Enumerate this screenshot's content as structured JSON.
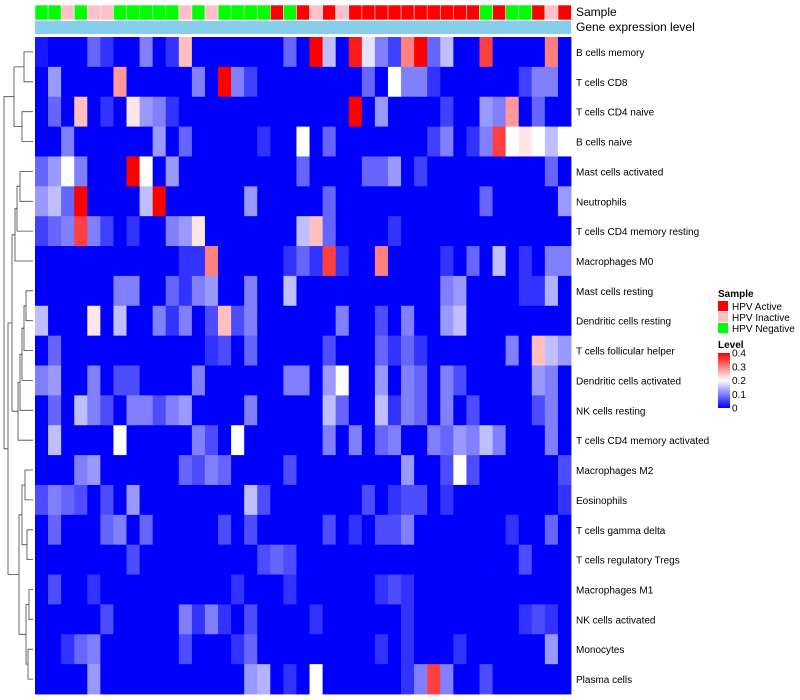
{
  "chart_data": {
    "type": "heatmap",
    "annotation_tracks": [
      {
        "name": "Sample"
      },
      {
        "name": "Gene expression level"
      }
    ],
    "rows": [
      "B cells memory",
      "T cells CD8",
      "T cells CD4 naive",
      "B cells naive",
      "Mast cells activated",
      "Neutrophils",
      "T cells CD4 memory resting",
      "Macrophages M0",
      "Mast cells resting",
      "Dendritic cells resting",
      "T cells follicular helper",
      "Dendritic cells activated",
      "NK cells resting",
      "T cells CD4 memory activated",
      "Macrophages M2",
      "Eosinophils",
      "T cells gamma delta",
      "T cells regulatory  Tregs",
      "Macrophages M1",
      "NK cells activated",
      "Monocytes",
      "Plasma cells"
    ],
    "column_groups": [
      "G",
      "G",
      "P",
      "G",
      "P",
      "P",
      "G",
      "G",
      "G",
      "G",
      "G",
      "P",
      "G",
      "P",
      "G",
      "G",
      "G",
      "G",
      "R",
      "G",
      "R",
      "P",
      "R",
      "P",
      "R",
      "R",
      "R",
      "R",
      "R",
      "R",
      "R",
      "R",
      "R",
      "R",
      "G",
      "R",
      "G",
      "G",
      "R",
      "P",
      "R"
    ],
    "values": [
      [
        0.02,
        0.0,
        0.0,
        0.0,
        0.08,
        0.04,
        0.0,
        0.0,
        0.1,
        0.0,
        0.04,
        0.25,
        0.0,
        0.0,
        0.0,
        0.0,
        0.0,
        0.0,
        0.0,
        0.08,
        0.0,
        0.4,
        0.15,
        0.0,
        0.38,
        0.18,
        0.1,
        0.05,
        0.3,
        0.4,
        0.08,
        0.15,
        0.0,
        0.0,
        0.35,
        0.0,
        0.0,
        0.0,
        0.0,
        0.3,
        0.0
      ],
      [
        0.0,
        0.12,
        0.0,
        0.0,
        0.0,
        0.0,
        0.28,
        0.0,
        0.0,
        0.0,
        0.0,
        0.0,
        0.1,
        0.0,
        0.4,
        0.1,
        0.05,
        0.0,
        0.0,
        0.0,
        0.0,
        0.0,
        0.0,
        0.0,
        0.0,
        0.08,
        0.0,
        0.2,
        0.1,
        0.1,
        0.04,
        0.0,
        0.0,
        0.0,
        0.0,
        0.0,
        0.0,
        0.05,
        0.1,
        0.1,
        0.0
      ],
      [
        0.0,
        0.08,
        0.0,
        0.25,
        0.0,
        0.04,
        0.0,
        0.22,
        0.12,
        0.1,
        0.04,
        0.0,
        0.0,
        0.0,
        0.0,
        0.0,
        0.0,
        0.0,
        0.0,
        0.0,
        0.0,
        0.0,
        0.0,
        0.0,
        0.4,
        0.0,
        0.12,
        0.0,
        0.0,
        0.0,
        0.0,
        0.05,
        0.0,
        0.0,
        0.12,
        0.1,
        0.28,
        0.0,
        0.08,
        0.0,
        0.0
      ],
      [
        0.0,
        0.0,
        0.1,
        0.0,
        0.0,
        0.0,
        0.0,
        0.0,
        0.0,
        0.12,
        0.0,
        0.08,
        0.0,
        0.0,
        0.0,
        0.0,
        0.0,
        0.04,
        0.0,
        0.0,
        0.2,
        0.0,
        0.08,
        0.0,
        0.0,
        0.0,
        0.0,
        0.0,
        0.0,
        0.0,
        0.05,
        0.1,
        0.0,
        0.04,
        0.1,
        0.35,
        0.2,
        0.22,
        0.2,
        0.15,
        0.2
      ],
      [
        0.08,
        0.12,
        0.2,
        0.1,
        0.0,
        0.0,
        0.0,
        0.4,
        0.2,
        0.0,
        0.12,
        0.0,
        0.0,
        0.0,
        0.0,
        0.0,
        0.0,
        0.0,
        0.0,
        0.0,
        0.08,
        0.0,
        0.0,
        0.0,
        0.0,
        0.08,
        0.08,
        0.12,
        0.0,
        0.05,
        0.0,
        0.0,
        0.0,
        0.0,
        0.0,
        0.0,
        0.0,
        0.0,
        0.0,
        0.08,
        0.0
      ],
      [
        0.12,
        0.15,
        0.08,
        0.4,
        0.0,
        0.0,
        0.0,
        0.0,
        0.15,
        0.4,
        0.0,
        0.0,
        0.0,
        0.0,
        0.0,
        0.0,
        0.12,
        0.0,
        0.0,
        0.0,
        0.0,
        0.0,
        0.08,
        0.0,
        0.0,
        0.0,
        0.0,
        0.0,
        0.0,
        0.0,
        0.0,
        0.0,
        0.0,
        0.0,
        0.08,
        0.0,
        0.0,
        0.0,
        0.0,
        0.0,
        0.12
      ],
      [
        0.05,
        0.08,
        0.1,
        0.35,
        0.1,
        0.05,
        0.0,
        0.04,
        0.0,
        0.0,
        0.1,
        0.12,
        0.22,
        0.0,
        0.0,
        0.0,
        0.0,
        0.0,
        0.0,
        0.0,
        0.15,
        0.25,
        0.08,
        0.0,
        0.0,
        0.0,
        0.0,
        0.04,
        0.0,
        0.0,
        0.0,
        0.0,
        0.0,
        0.0,
        0.0,
        0.0,
        0.0,
        0.0,
        0.0,
        0.0,
        0.0
      ],
      [
        0.0,
        0.0,
        0.0,
        0.0,
        0.0,
        0.0,
        0.0,
        0.0,
        0.0,
        0.0,
        0.0,
        0.04,
        0.04,
        0.3,
        0.0,
        0.0,
        0.0,
        0.0,
        0.0,
        0.04,
        0.08,
        0.04,
        0.35,
        0.04,
        0.0,
        0.0,
        0.3,
        0.0,
        0.0,
        0.0,
        0.0,
        0.04,
        0.0,
        0.08,
        0.0,
        0.15,
        0.0,
        0.04,
        0.0,
        0.1,
        0.1
      ],
      [
        0.0,
        0.0,
        0.0,
        0.0,
        0.0,
        0.0,
        0.1,
        0.1,
        0.0,
        0.0,
        0.08,
        0.04,
        0.1,
        0.12,
        0.0,
        0.0,
        0.1,
        0.0,
        0.0,
        0.15,
        0.0,
        0.0,
        0.0,
        0.0,
        0.0,
        0.0,
        0.0,
        0.0,
        0.0,
        0.0,
        0.0,
        0.1,
        0.12,
        0.0,
        0.0,
        0.0,
        0.0,
        0.04,
        0.04,
        0.14,
        0.0
      ],
      [
        0.15,
        0.0,
        0.0,
        0.0,
        0.22,
        0.0,
        0.15,
        0.0,
        0.0,
        0.1,
        0.04,
        0.1,
        0.0,
        0.06,
        0.25,
        0.06,
        0.1,
        0.0,
        0.0,
        0.0,
        0.0,
        0.0,
        0.0,
        0.1,
        0.0,
        0.0,
        0.06,
        0.0,
        0.1,
        0.0,
        0.0,
        0.12,
        0.15,
        0.0,
        0.0,
        0.0,
        0.0,
        0.0,
        0.0,
        0.0,
        0.0
      ],
      [
        0.0,
        0.08,
        0.0,
        0.0,
        0.0,
        0.0,
        0.0,
        0.0,
        0.0,
        0.0,
        0.0,
        0.0,
        0.0,
        0.04,
        0.06,
        0.0,
        0.08,
        0.0,
        0.0,
        0.0,
        0.0,
        0.0,
        0.06,
        0.0,
        0.0,
        0.0,
        0.08,
        0.04,
        0.08,
        0.04,
        0.0,
        0.0,
        0.0,
        0.0,
        0.0,
        0.0,
        0.1,
        0.0,
        0.25,
        0.15,
        0.12
      ],
      [
        0.1,
        0.12,
        0.0,
        0.0,
        0.1,
        0.0,
        0.06,
        0.06,
        0.0,
        0.0,
        0.0,
        0.0,
        0.1,
        0.0,
        0.0,
        0.0,
        0.0,
        0.0,
        0.0,
        0.1,
        0.1,
        0.0,
        0.12,
        0.2,
        0.0,
        0.0,
        0.12,
        0.0,
        0.1,
        0.08,
        0.0,
        0.1,
        0.06,
        0.0,
        0.0,
        0.0,
        0.0,
        0.0,
        0.12,
        0.1,
        0.0
      ],
      [
        0.0,
        0.08,
        0.0,
        0.15,
        0.1,
        0.06,
        0.0,
        0.1,
        0.1,
        0.06,
        0.1,
        0.12,
        0.0,
        0.0,
        0.0,
        0.0,
        0.1,
        0.0,
        0.0,
        0.0,
        0.0,
        0.0,
        0.15,
        0.08,
        0.0,
        0.0,
        0.15,
        0.04,
        0.1,
        0.08,
        0.0,
        0.1,
        0.0,
        0.06,
        0.0,
        0.0,
        0.0,
        0.0,
        0.06,
        0.1,
        0.0
      ],
      [
        0.0,
        0.15,
        0.0,
        0.0,
        0.0,
        0.0,
        0.2,
        0.0,
        0.0,
        0.0,
        0.0,
        0.0,
        0.1,
        0.06,
        0.0,
        0.2,
        0.0,
        0.0,
        0.0,
        0.0,
        0.0,
        0.0,
        0.1,
        0.0,
        0.1,
        0.0,
        0.08,
        0.1,
        0.0,
        0.0,
        0.1,
        0.08,
        0.12,
        0.1,
        0.15,
        0.1,
        0.0,
        0.0,
        0.0,
        0.1,
        0.0
      ],
      [
        0.0,
        0.0,
        0.0,
        0.1,
        0.12,
        0.0,
        0.0,
        0.0,
        0.0,
        0.0,
        0.0,
        0.08,
        0.06,
        0.1,
        0.08,
        0.0,
        0.0,
        0.0,
        0.0,
        0.06,
        0.0,
        0.0,
        0.0,
        0.0,
        0.0,
        0.0,
        0.0,
        0.0,
        0.12,
        0.0,
        0.0,
        0.06,
        0.2,
        0.06,
        0.0,
        0.0,
        0.0,
        0.0,
        0.0,
        0.0,
        0.06
      ],
      [
        0.06,
        0.1,
        0.08,
        0.06,
        0.0,
        0.06,
        0.0,
        0.12,
        0.0,
        0.0,
        0.0,
        0.0,
        0.0,
        0.0,
        0.0,
        0.0,
        0.15,
        0.06,
        0.0,
        0.0,
        0.0,
        0.0,
        0.0,
        0.0,
        0.0,
        0.06,
        0.0,
        0.04,
        0.06,
        0.06,
        0.0,
        0.04,
        0.0,
        0.0,
        0.0,
        0.0,
        0.0,
        0.0,
        0.0,
        0.0,
        0.04
      ],
      [
        0.0,
        0.08,
        0.0,
        0.0,
        0.0,
        0.08,
        0.1,
        0.0,
        0.08,
        0.0,
        0.0,
        0.0,
        0.0,
        0.0,
        0.06,
        0.0,
        0.06,
        0.0,
        0.0,
        0.0,
        0.0,
        0.0,
        0.06,
        0.0,
        0.04,
        0.0,
        0.06,
        0.06,
        0.1,
        0.0,
        0.0,
        0.0,
        0.0,
        0.0,
        0.0,
        0.0,
        0.04,
        0.0,
        0.0,
        0.08,
        0.0
      ],
      [
        0.0,
        0.0,
        0.0,
        0.0,
        0.0,
        0.0,
        0.0,
        0.06,
        0.0,
        0.0,
        0.0,
        0.0,
        0.0,
        0.0,
        0.0,
        0.0,
        0.0,
        0.06,
        0.08,
        0.06,
        0.0,
        0.0,
        0.0,
        0.0,
        0.0,
        0.0,
        0.0,
        0.0,
        0.0,
        0.0,
        0.0,
        0.0,
        0.0,
        0.0,
        0.0,
        0.0,
        0.0,
        0.06,
        0.0,
        0.0,
        0.0
      ],
      [
        0.0,
        0.06,
        0.0,
        0.0,
        0.04,
        0.0,
        0.0,
        0.0,
        0.0,
        0.0,
        0.0,
        0.0,
        0.0,
        0.0,
        0.0,
        0.04,
        0.0,
        0.0,
        0.0,
        0.04,
        0.0,
        0.0,
        0.0,
        0.0,
        0.0,
        0.0,
        0.04,
        0.06,
        0.04,
        0.0,
        0.0,
        0.0,
        0.0,
        0.0,
        0.0,
        0.0,
        0.0,
        0.0,
        0.0,
        0.0,
        0.0
      ],
      [
        0.0,
        0.0,
        0.0,
        0.0,
        0.0,
        0.06,
        0.0,
        0.0,
        0.0,
        0.0,
        0.0,
        0.1,
        0.04,
        0.1,
        0.04,
        0.0,
        0.06,
        0.0,
        0.0,
        0.0,
        0.0,
        0.04,
        0.0,
        0.0,
        0.0,
        0.0,
        0.0,
        0.0,
        0.04,
        0.0,
        0.0,
        0.0,
        0.0,
        0.0,
        0.0,
        0.0,
        0.0,
        0.04,
        0.06,
        0.04,
        0.0
      ],
      [
        0.0,
        0.0,
        0.04,
        0.08,
        0.1,
        0.0,
        0.0,
        0.0,
        0.0,
        0.0,
        0.0,
        0.06,
        0.0,
        0.0,
        0.0,
        0.04,
        0.08,
        0.0,
        0.0,
        0.0,
        0.0,
        0.0,
        0.0,
        0.0,
        0.0,
        0.0,
        0.04,
        0.0,
        0.04,
        0.0,
        0.0,
        0.0,
        0.04,
        0.0,
        0.0,
        0.0,
        0.0,
        0.0,
        0.0,
        0.12,
        0.0
      ],
      [
        0.0,
        0.0,
        0.0,
        0.0,
        0.12,
        0.0,
        0.0,
        0.0,
        0.0,
        0.0,
        0.0,
        0.0,
        0.0,
        0.0,
        0.0,
        0.0,
        0.12,
        0.14,
        0.0,
        0.04,
        0.0,
        0.2,
        0.0,
        0.0,
        0.0,
        0.0,
        0.0,
        0.0,
        0.04,
        0.1,
        0.35,
        0.1,
        0.0,
        0.0,
        0.06,
        0.0,
        0.0,
        0.0,
        0.0,
        0.0,
        0.0
      ]
    ],
    "color_scale": {
      "title": "Level",
      "min": 0,
      "max": 0.4,
      "ticks": [
        "0.4",
        "0.3",
        "0.2",
        "0.1",
        "0"
      ],
      "tick_values": [
        0.4,
        0.3,
        0.2,
        0.1,
        0
      ],
      "colors": [
        "#0000ff",
        "#ffffff",
        "#ff0000"
      ]
    },
    "legend": {
      "title": "Sample",
      "entries": [
        {
          "key": "R",
          "label": "HPV Active",
          "color": "#ff0000"
        },
        {
          "key": "P",
          "label": "HPV Inactive",
          "color": "#ffc0cb"
        },
        {
          "key": "G",
          "label": "HPV Negative",
          "color": "#00ff00"
        }
      ]
    },
    "gene_expression_color": "#87ceeb",
    "legend_position": "right"
  }
}
